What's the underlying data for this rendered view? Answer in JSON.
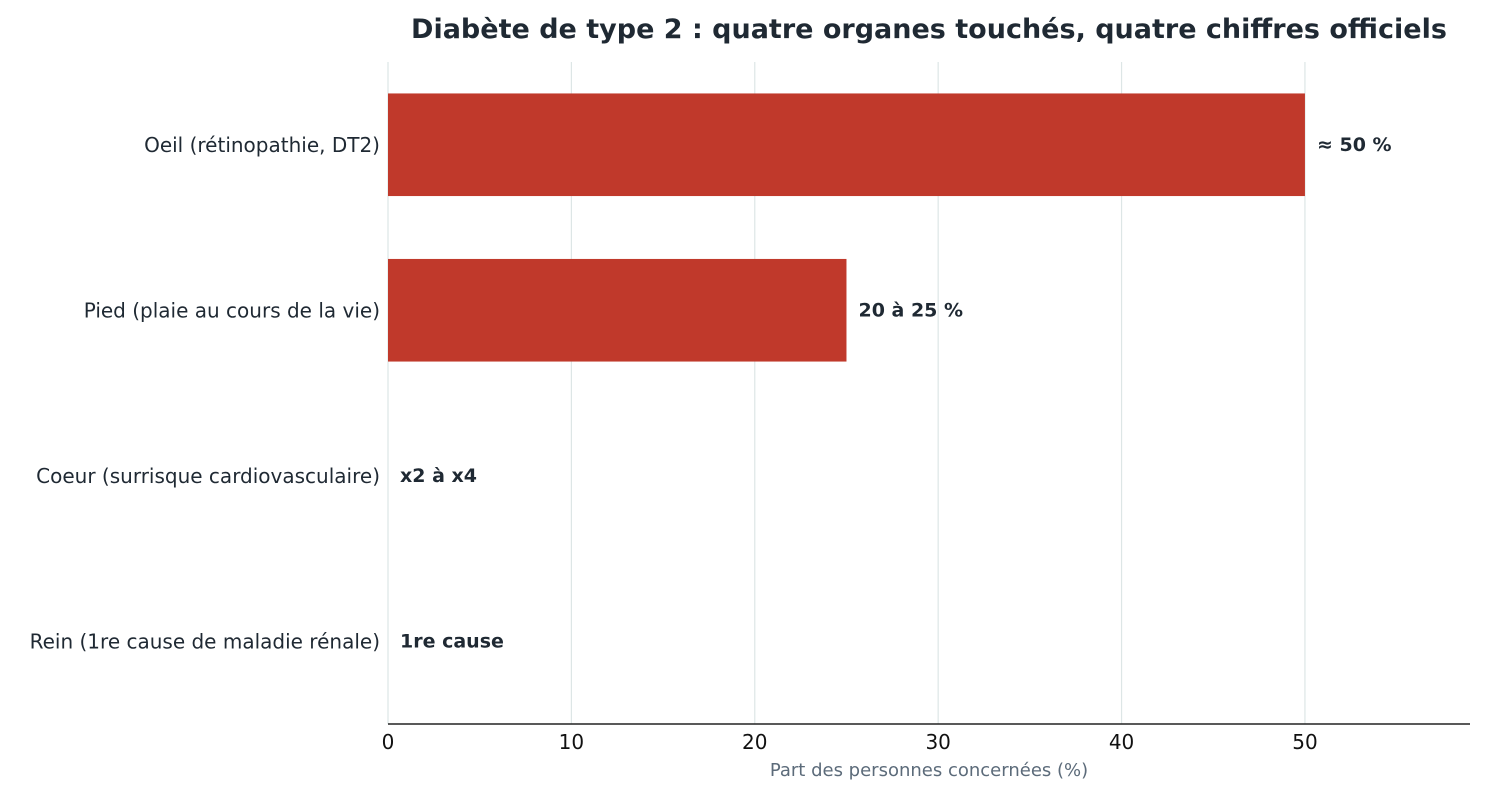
{
  "chart_data": {
    "type": "bar",
    "orientation": "horizontal",
    "title": "Diabète de type 2 : quatre organes touchés, quatre chiffres officiels",
    "xlabel": "Part des personnes concernées (%)",
    "ylabel": "",
    "categories": [
      "Oeil (rétinopathie, DT2)",
      "Pied (plaie au cours de la vie)",
      "Coeur (surrisque cardiovasculaire)",
      "Rein (1re cause de maladie rénale)"
    ],
    "values": [
      50,
      25,
      0,
      0
    ],
    "data_labels": [
      "≈ 50 %",
      "20 à 25 %",
      "x2 à x4",
      "1re cause"
    ],
    "xticks": [
      0,
      10,
      20,
      30,
      40,
      50
    ],
    "xlim": [
      0,
      59
    ],
    "grid": true,
    "bar_color": "#c0392b"
  }
}
